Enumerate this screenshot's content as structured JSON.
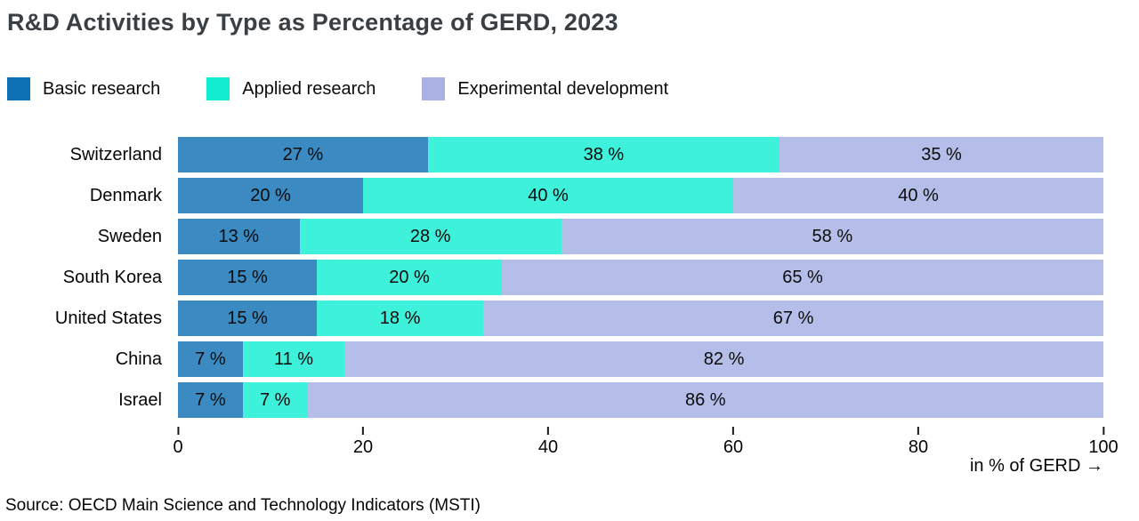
{
  "title": "R&D Activities by Type as Percentage of GERD, 2023",
  "source": "Source: OECD Main Science and Technology Indicators (MSTI)",
  "colors": {
    "title_text": "#3A3F44",
    "basic_research_legend": "#0E71B5",
    "basic_research_bar": "#3B8AC1",
    "applied_research_legend": "#12ECD0",
    "applied_research_bar": "#3DF1DA",
    "experimental_development_legend": "#A9B2E3",
    "experimental_development_bar": "#B5BEE9"
  },
  "chart_data": {
    "type": "bar",
    "orientation": "horizontal",
    "stacked": true,
    "title": "R&D Activities by Type as Percentage of GERD, 2023",
    "categories": [
      "Switzerland",
      "Denmark",
      "Sweden",
      "South Korea",
      "United States",
      "China",
      "Israel"
    ],
    "series": [
      {
        "name": "Basic research",
        "color": "#0E71B5",
        "bar_color": "#3B8AC1",
        "values": [
          27,
          20,
          13,
          15,
          15,
          7,
          7
        ]
      },
      {
        "name": "Applied research",
        "color": "#12ECD0",
        "bar_color": "#3DF1DA",
        "values": [
          38,
          40,
          28,
          20,
          18,
          11,
          7
        ]
      },
      {
        "name": "Experimental development",
        "color": "#A9B2E3",
        "bar_color": "#B5BEE9",
        "values": [
          35,
          40,
          58,
          65,
          67,
          82,
          86
        ]
      }
    ],
    "value_suffix": " %",
    "x_ticks": [
      0,
      20,
      40,
      60,
      80,
      100
    ],
    "xlim": [
      0,
      100
    ],
    "xlabel": "in % of GERD →",
    "legend_position": "top",
    "grid": false
  }
}
